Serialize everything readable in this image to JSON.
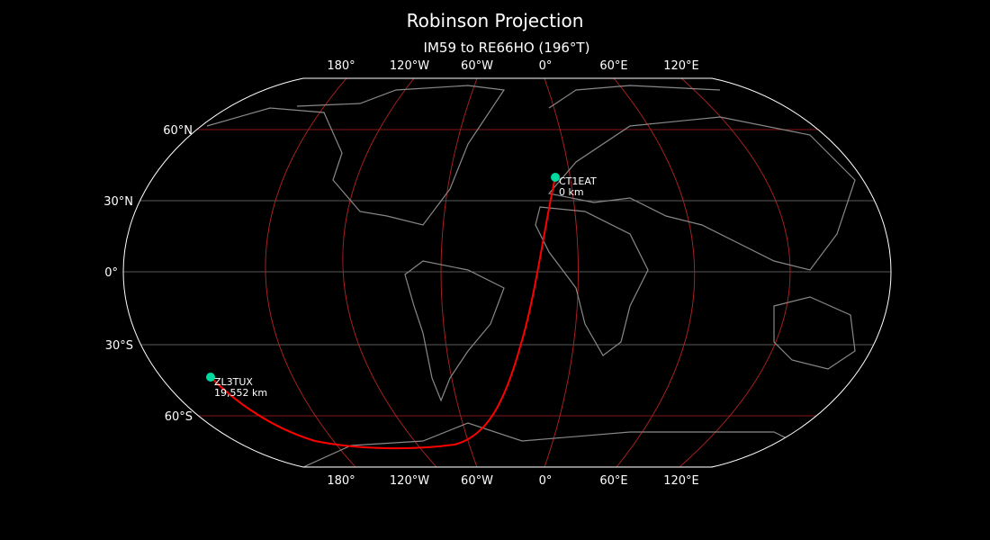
{
  "title": "Robinson Projection",
  "subtitle": "IM59 to RE66HO (196°T)",
  "lon_labels": [
    "180°",
    "120°W",
    "60°W",
    "0°",
    "60°E",
    "120°E"
  ],
  "lat_labels": [
    "60°N",
    "30°N",
    "0°",
    "30°S",
    "60°S"
  ],
  "points": [
    {
      "call": "CT1EAT",
      "distance": "0 km",
      "lat": 38.7,
      "lon": -9.1
    },
    {
      "call": "ZL3TUX",
      "distance": "19,552 km",
      "lat": -43.5,
      "lon": 172.6
    }
  ],
  "colors": {
    "path": "#ff0000",
    "marker": "#00d9a0",
    "grid_red": "#b22222",
    "grid_gray": "#777777",
    "coast": "#888888",
    "background": "#000000"
  }
}
